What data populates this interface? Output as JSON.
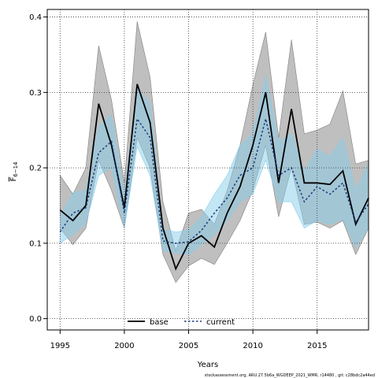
{
  "chart_data": {
    "type": "line",
    "xlabel": "Years",
    "ylabel_main": "F",
    "ylabel_sub": "6−14",
    "xlim": [
      1994,
      2019
    ],
    "ylim": [
      -0.015,
      0.41
    ],
    "x_ticks": [
      1995,
      2000,
      2005,
      2010,
      2015
    ],
    "y_ticks": [
      0.0,
      0.1,
      0.2,
      0.3,
      0.4
    ],
    "y_tick_labels": [
      "0.0",
      "0.1",
      "0.2",
      "0.3",
      "0.4"
    ],
    "grid": true,
    "legend_position": "bottom-center",
    "x": [
      1995,
      1996,
      1997,
      1998,
      1999,
      2000,
      2001,
      2002,
      2003,
      2004,
      2005,
      2006,
      2007,
      2008,
      2009,
      2010,
      2011,
      2012,
      2013,
      2014,
      2015,
      2016,
      2017,
      2018,
      2019
    ],
    "series": [
      {
        "name": "base",
        "color": "#000000",
        "band_color": "#808080",
        "values": [
          0.144,
          0.13,
          0.15,
          0.285,
          0.23,
          0.147,
          0.311,
          0.26,
          0.12,
          0.066,
          0.1,
          0.11,
          0.095,
          0.14,
          0.175,
          0.23,
          0.3,
          0.18,
          0.278,
          0.18,
          0.18,
          0.178,
          0.196,
          0.125,
          0.16
        ],
        "lower": [
          0.12,
          0.098,
          0.12,
          0.21,
          0.17,
          0.12,
          0.24,
          0.2,
          0.085,
          0.048,
          0.07,
          0.08,
          0.072,
          0.1,
          0.13,
          0.17,
          0.23,
          0.135,
          0.2,
          0.125,
          0.128,
          0.12,
          0.13,
          0.085,
          0.12
        ],
        "upper": [
          0.19,
          0.165,
          0.2,
          0.362,
          0.29,
          0.18,
          0.394,
          0.32,
          0.155,
          0.09,
          0.14,
          0.145,
          0.125,
          0.17,
          0.23,
          0.31,
          0.38,
          0.24,
          0.37,
          0.245,
          0.25,
          0.258,
          0.302,
          0.205,
          0.21
        ]
      },
      {
        "name": "current",
        "color": "#1a3a7a",
        "band_color": "#87ceeb",
        "values": [
          0.115,
          0.14,
          0.147,
          0.22,
          0.235,
          0.14,
          0.265,
          0.24,
          0.103,
          0.1,
          0.102,
          0.117,
          0.14,
          0.16,
          0.19,
          0.2,
          0.265,
          0.19,
          0.2,
          0.155,
          0.175,
          0.165,
          0.18,
          0.128,
          0.152
        ],
        "lower": [
          0.1,
          0.112,
          0.126,
          0.19,
          0.2,
          0.12,
          0.228,
          0.19,
          0.09,
          0.087,
          0.085,
          0.098,
          0.112,
          0.13,
          0.155,
          0.165,
          0.21,
          0.155,
          0.155,
          0.12,
          0.13,
          0.125,
          0.132,
          0.095,
          0.12
        ],
        "upper": [
          0.135,
          0.167,
          0.17,
          0.255,
          0.27,
          0.165,
          0.305,
          0.285,
          0.118,
          0.115,
          0.117,
          0.135,
          0.165,
          0.19,
          0.23,
          0.245,
          0.322,
          0.235,
          0.245,
          0.195,
          0.225,
          0.215,
          0.24,
          0.17,
          0.205
        ]
      }
    ],
    "footer": "stockassessment.org, ARU.27.5b6a_WGDEEP_2021_WMR, r14480 , git: c28bdc2a44ed"
  }
}
